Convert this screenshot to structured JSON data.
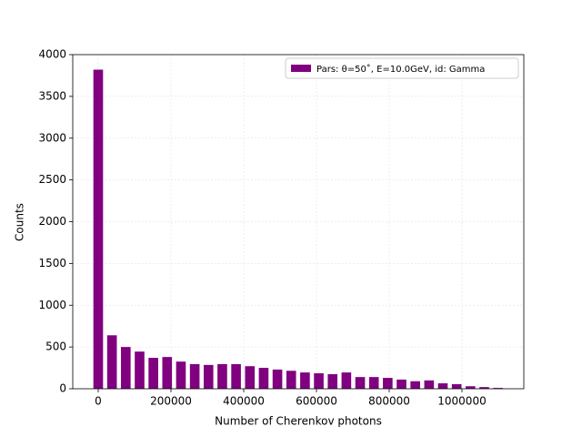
{
  "chart_data": {
    "type": "histogram",
    "xlabel": "Number of Cherenkov photons",
    "ylabel": "Counts",
    "bins": [
      -18950,
      18950,
      56850,
      94750,
      132650,
      170550,
      208450,
      246350,
      284250,
      322150,
      360050,
      397950,
      435850,
      473750,
      511650,
      549550,
      587450,
      625350,
      663250,
      701150,
      739050,
      776950,
      814850,
      852750,
      890650,
      928550,
      966450,
      1004350,
      1042250,
      1080150,
      1118050
    ],
    "values": [
      3820,
      640,
      500,
      445,
      370,
      380,
      325,
      295,
      285,
      295,
      295,
      270,
      250,
      230,
      215,
      195,
      185,
      175,
      195,
      140,
      140,
      130,
      110,
      90,
      100,
      65,
      55,
      30,
      20,
      10
    ],
    "series_name": "Pars: θ=50˚, E=10.0GeV, id: Gamma",
    "color": "#800080",
    "xlim": [
      -70000,
      1170000
    ],
    "ylim": [
      0,
      4000
    ],
    "xticks": [
      0,
      200000,
      400000,
      600000,
      800000,
      1000000
    ],
    "yticks": [
      0,
      500,
      1000,
      1500,
      2000,
      2500,
      3000,
      3500,
      4000
    ],
    "grid": true,
    "legend": "upper right"
  }
}
